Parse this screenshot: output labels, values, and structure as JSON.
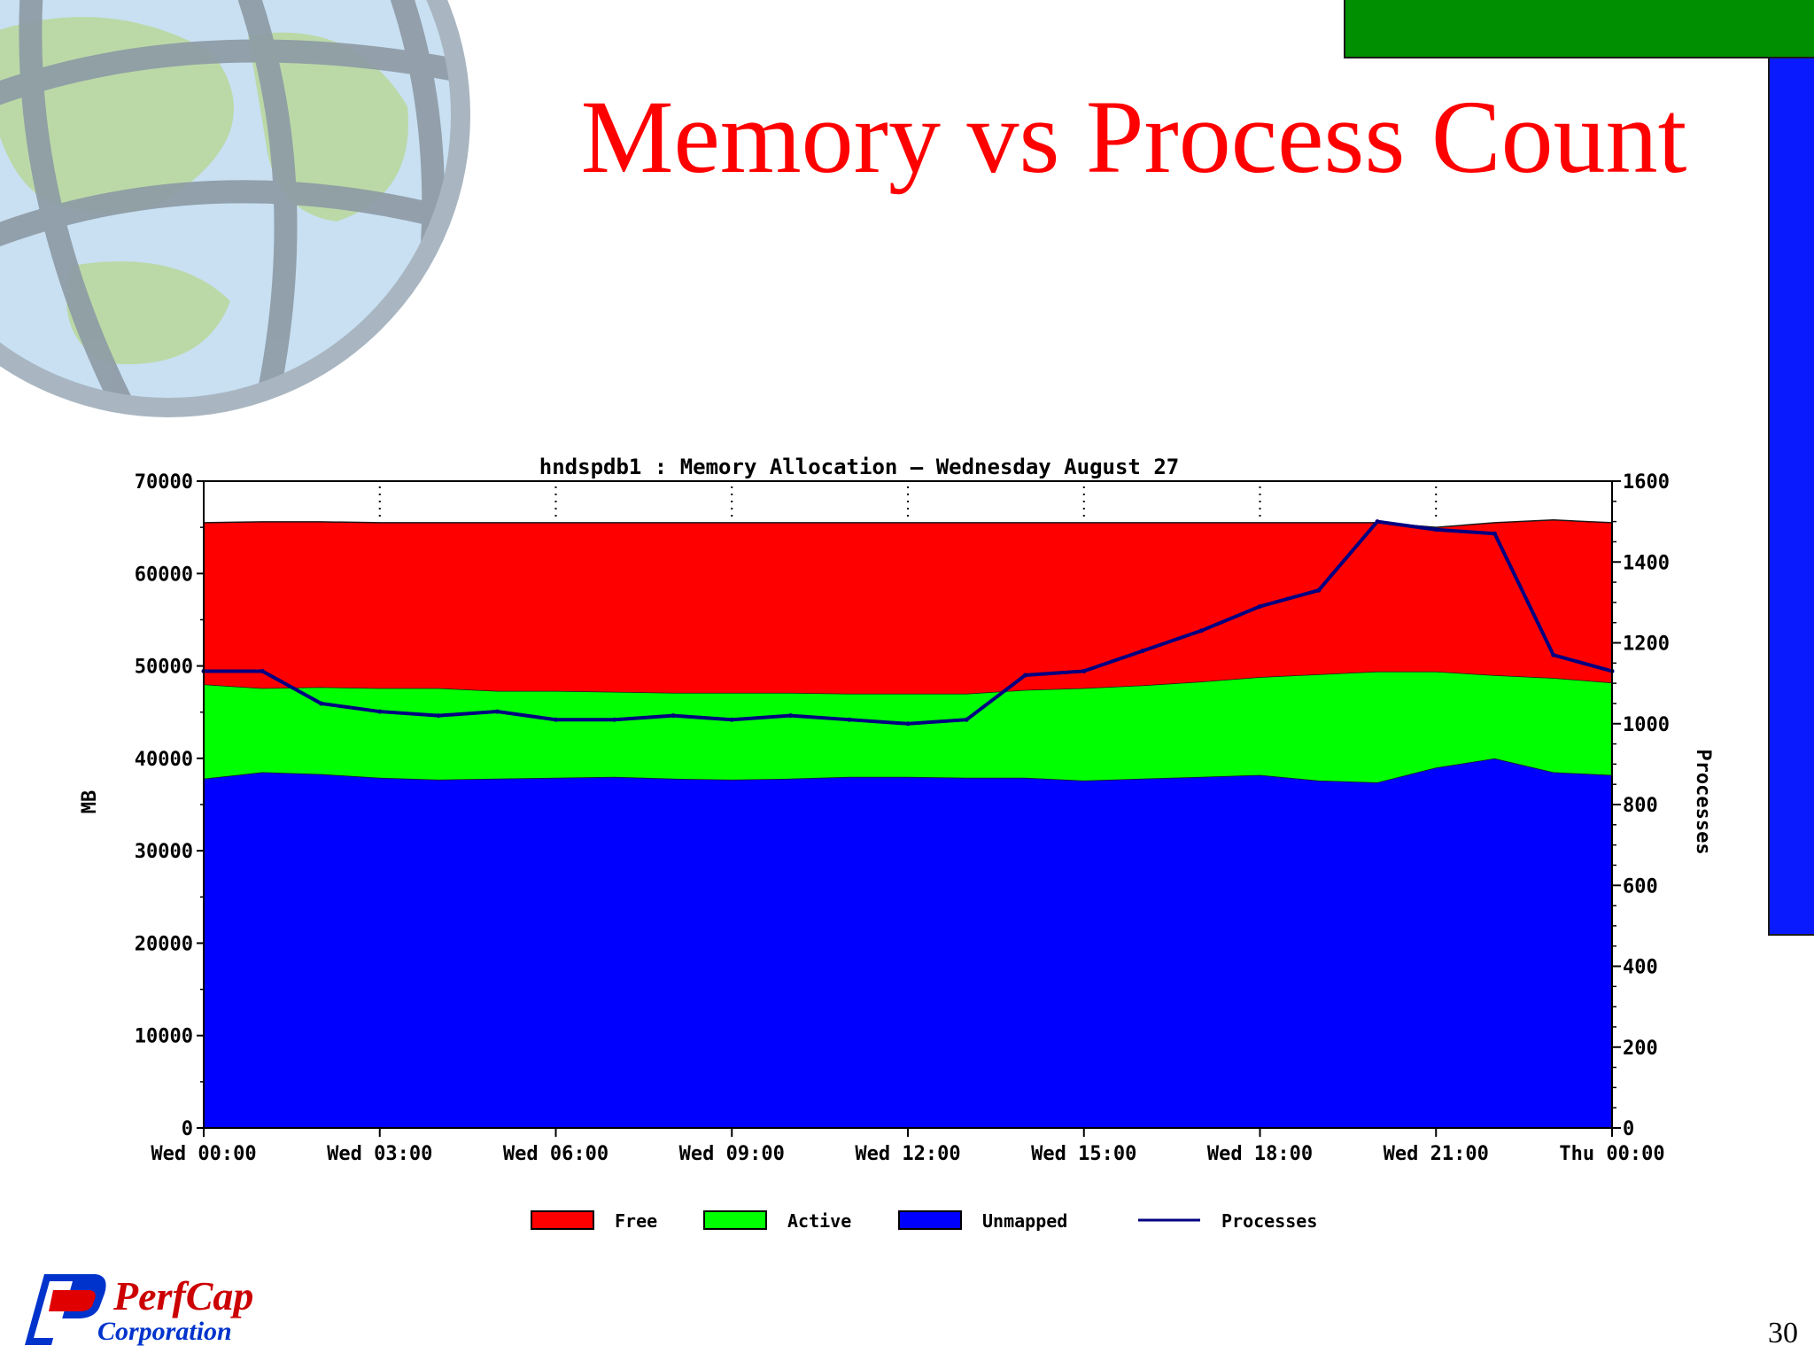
{
  "slide": {
    "title": "Memory vs Process Count",
    "page_number": "30"
  },
  "logo": {
    "line1": "PerfCap",
    "line2": "Corporation"
  },
  "colors": {
    "title": "#ff0000",
    "free": "#ff0000",
    "active": "#00ff00",
    "unmapped": "#0000ff",
    "processes": "#000080",
    "deco_green": "#008f00",
    "deco_blue": "#0a1aff"
  },
  "chart_data": {
    "type": "area",
    "title": "hndspdb1 : Memory Allocation – Wednesday August 27",
    "ylabel": "MB",
    "y2label": "Processes",
    "ylim": [
      0,
      70000
    ],
    "y2lim": [
      0,
      1600
    ],
    "yticks": [
      "70000",
      "60000",
      "50000",
      "40000",
      "30000",
      "20000",
      "10000",
      "0"
    ],
    "y2ticks": [
      "1600",
      "1400",
      "1200",
      "1000",
      "800",
      "600",
      "400",
      "200",
      "0"
    ],
    "xticks": [
      "Wed 00:00",
      "Wed 03:00",
      "Wed 06:00",
      "Wed 09:00",
      "Wed 12:00",
      "Wed 15:00",
      "Wed 18:00",
      "Wed 21:00",
      "Thu 00:00"
    ],
    "x_hours": [
      0,
      1,
      2,
      3,
      4,
      5,
      6,
      7,
      8,
      9,
      10,
      11,
      12,
      13,
      14,
      15,
      16,
      17,
      18,
      19,
      20,
      21,
      22,
      23,
      24
    ],
    "legend_position": "bottom",
    "series": [
      {
        "name": "Unmapped",
        "color": "#0000ff",
        "axis": "left",
        "values": [
          37800,
          38500,
          38300,
          37900,
          37700,
          37800,
          37900,
          38000,
          37800,
          37700,
          37800,
          38000,
          38000,
          37900,
          37900,
          37600,
          37800,
          38000,
          38200,
          37600,
          37400,
          39000,
          40000,
          38500,
          38200
        ]
      },
      {
        "name": "Active",
        "color": "#00ff00",
        "axis": "left",
        "values": [
          10200,
          9100,
          9400,
          9700,
          9900,
          9500,
          9400,
          9200,
          9300,
          9400,
          9300,
          9000,
          9000,
          9100,
          9500,
          10000,
          10100,
          10300,
          10600,
          11500,
          12000,
          10400,
          9000,
          10200,
          10000
        ]
      },
      {
        "name": "Free",
        "color": "#ff0000",
        "axis": "left",
        "values": [
          17500,
          18000,
          17900,
          17900,
          17900,
          18200,
          18200,
          18300,
          18400,
          18400,
          18400,
          18500,
          18500,
          18500,
          18100,
          17900,
          17600,
          17200,
          16700,
          16400,
          16100,
          15600,
          16500,
          17100,
          17300
        ]
      },
      {
        "name": "Processes",
        "color": "#000080",
        "axis": "right",
        "values": [
          1130,
          1130,
          1050,
          1030,
          1020,
          1030,
          1010,
          1010,
          1020,
          1010,
          1020,
          1010,
          1000,
          1010,
          1120,
          1130,
          1180,
          1230,
          1290,
          1330,
          1500,
          1480,
          1470,
          1170,
          1130
        ]
      }
    ]
  }
}
